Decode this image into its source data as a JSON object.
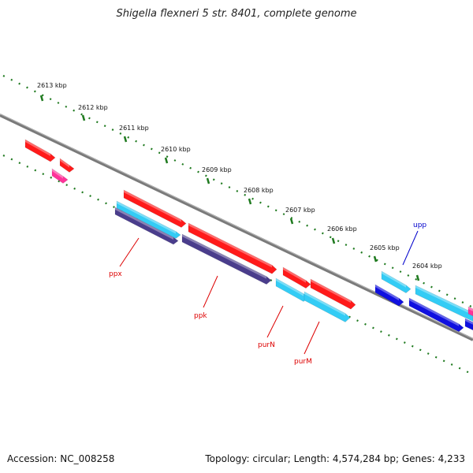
{
  "title": "Shigella flexneri 5 str. 8401, complete genome",
  "footer": {
    "accession": "Accession: NC_008258",
    "summary": "Topology: circular; Length: 4,574,284 bp; Genes: 4,233"
  },
  "ruler": {
    "ticks": [
      {
        "label": "2613 kbp"
      },
      {
        "label": "2612 kbp"
      },
      {
        "label": "2611 kbp"
      },
      {
        "label": "2610 kbp"
      },
      {
        "label": "2609 kbp"
      },
      {
        "label": "2608 kbp"
      },
      {
        "label": "2607 kbp"
      },
      {
        "label": "2606 kbp"
      },
      {
        "label": "2605 kbp"
      },
      {
        "label": "2604 kbp"
      }
    ]
  },
  "gene_labels": [
    {
      "name": "ppx",
      "color": "#dd0000"
    },
    {
      "name": "ppk",
      "color": "#dd0000"
    },
    {
      "name": "purN",
      "color": "#dd0000"
    },
    {
      "name": "purM",
      "color": "#dd0000"
    },
    {
      "name": "upp",
      "color": "#0000cc"
    }
  ],
  "colors": {
    "backbone": "#808080",
    "ruler_dots": "#1f7a1f",
    "cds_red": "#ff1a1a",
    "cds_cyan": "#33ccf5",
    "cds_blue": "#1010e0",
    "cds_magenta": "#ff3399",
    "cds_purple": "#4a3d8c"
  }
}
